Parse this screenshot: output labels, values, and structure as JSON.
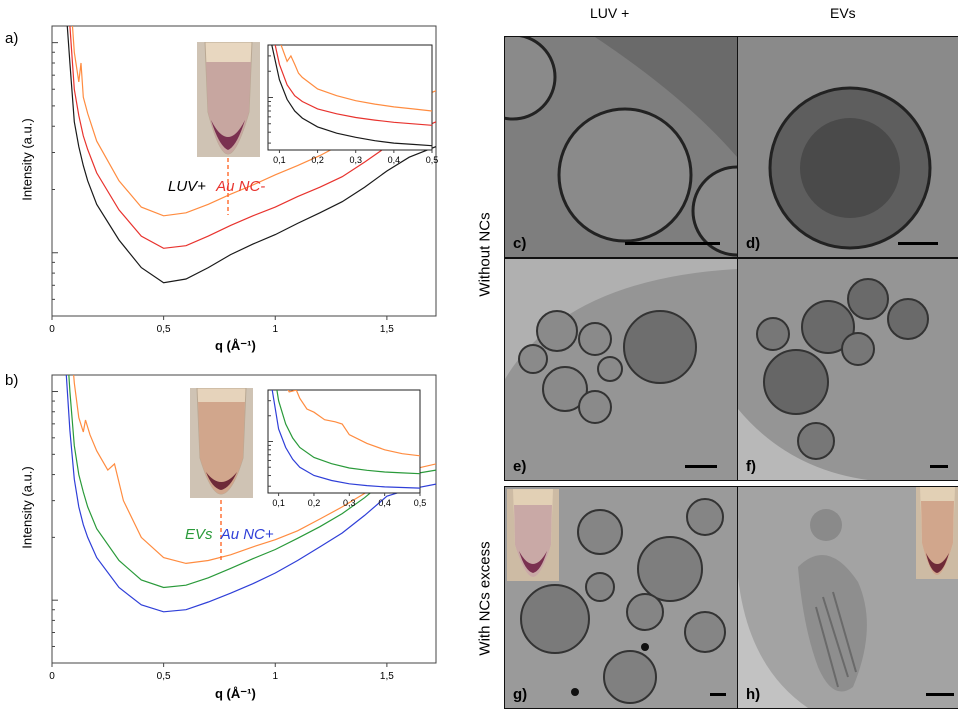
{
  "figure": {
    "panel_a_label": "a)",
    "panel_b_label": "b)",
    "col_left_title": "LUV +",
    "col_right_title": "EVs",
    "row_top_title": "Without NCs",
    "row_bottom_title": "With NCs excess",
    "micro_labels": [
      "c)",
      "d)",
      "e)",
      "f)",
      "g)",
      "h)"
    ],
    "legend_a": {
      "first": "LUV+",
      "second": "Au NC-"
    },
    "legend_b": {
      "first": "EVs",
      "second": "Au NC+"
    }
  },
  "chart_data": [
    {
      "type": "line",
      "title": "",
      "xlabel": "q (Å⁻¹)",
      "ylabel": "Intensity (a.u.)",
      "xlim": [
        0,
        1.72
      ],
      "x_ticks": [
        "0",
        "0,5",
        "1",
        "1,5"
      ],
      "log_y": true,
      "series": [
        {
          "color": "#ff8c40",
          "x": [
            0.04,
            0.06,
            0.08,
            0.1,
            0.12,
            0.13,
            0.14,
            0.16,
            0.2,
            0.3,
            0.4,
            0.5,
            0.6,
            0.7,
            0.8,
            0.9,
            1.0,
            1.1,
            1.2,
            1.3,
            1.4,
            1.5,
            1.6,
            1.72
          ],
          "y": [
            100,
            35,
            18,
            9,
            6.5,
            8,
            5.5,
            4.6,
            3.4,
            2.2,
            1.65,
            1.5,
            1.55,
            1.7,
            1.9,
            2.1,
            2.35,
            2.6,
            2.9,
            3.3,
            3.9,
            4.6,
            5.3,
            5.9
          ]
        },
        {
          "color": "#e8332e",
          "x": [
            0.04,
            0.06,
            0.08,
            0.1,
            0.12,
            0.14,
            0.16,
            0.2,
            0.3,
            0.4,
            0.5,
            0.6,
            0.7,
            0.8,
            0.9,
            1.0,
            1.1,
            1.2,
            1.3,
            1.4,
            1.5,
            1.6,
            1.72
          ],
          "y": [
            100,
            25,
            12,
            6,
            4.5,
            3.6,
            3.1,
            2.4,
            1.6,
            1.2,
            1.05,
            1.08,
            1.2,
            1.35,
            1.5,
            1.65,
            1.85,
            2.05,
            2.3,
            2.7,
            3.2,
            3.7,
            4.2
          ]
        },
        {
          "color": "#1a1a1a",
          "x": [
            0.04,
            0.06,
            0.08,
            0.1,
            0.12,
            0.14,
            0.16,
            0.2,
            0.3,
            0.4,
            0.5,
            0.6,
            0.7,
            0.8,
            0.9,
            1.0,
            1.1,
            1.2,
            1.3,
            1.4,
            1.5,
            1.6,
            1.72
          ],
          "y": [
            100,
            16,
            8,
            4.2,
            3.2,
            2.6,
            2.2,
            1.7,
            1.15,
            0.85,
            0.72,
            0.75,
            0.85,
            0.98,
            1.1,
            1.22,
            1.38,
            1.55,
            1.75,
            2.05,
            2.45,
            2.85,
            3.2
          ]
        }
      ],
      "inset": {
        "xlim": [
          0.07,
          0.5
        ],
        "x_ticks": [
          "0,1",
          "0,2",
          "0,3",
          "0,4",
          "0,5"
        ],
        "series": [
          {
            "color": "#ff8c40",
            "x": [
              0.08,
              0.1,
              0.12,
              0.13,
              0.14,
              0.15,
              0.16,
              0.2,
              0.25,
              0.3,
              0.35,
              0.4,
              0.45,
              0.5
            ],
            "y": [
              100,
              45,
              26,
              30,
              24,
              19,
              17,
              12.5,
              10.5,
              9.2,
              8.4,
              7.8,
              7.4,
              7.0
            ]
          },
          {
            "color": "#e8332e",
            "x": [
              0.08,
              0.1,
              0.12,
              0.14,
              0.16,
              0.2,
              0.25,
              0.3,
              0.35,
              0.4,
              0.45,
              0.5
            ],
            "y": [
              60,
              24,
              14,
              10.5,
              9,
              7.4,
              6.5,
              5.9,
              5.5,
              5.2,
              5.0,
              4.8
            ]
          },
          {
            "color": "#1a1a1a",
            "x": [
              0.08,
              0.1,
              0.12,
              0.14,
              0.16,
              0.2,
              0.25,
              0.3,
              0.35,
              0.4,
              0.45,
              0.5
            ],
            "y": [
              40,
              16,
              9.5,
              7,
              5.8,
              4.6,
              3.9,
              3.5,
              3.2,
              3.0,
              2.9,
              2.8
            ]
          }
        ]
      }
    },
    {
      "type": "line",
      "title": "",
      "xlabel": "q (Å⁻¹)",
      "ylabel": "Intensity (a.u.)",
      "xlim": [
        0,
        1.72
      ],
      "x_ticks": [
        "0",
        "0,5",
        "1",
        "1,5"
      ],
      "log_y": true,
      "series": [
        {
          "color": "#ff8c40",
          "x": [
            0.04,
            0.06,
            0.08,
            0.1,
            0.12,
            0.14,
            0.15,
            0.17,
            0.2,
            0.25,
            0.28,
            0.32,
            0.4,
            0.5,
            0.6,
            0.7,
            0.8,
            0.9,
            1.0,
            1.1,
            1.2,
            1.3,
            1.4,
            1.5,
            1.6,
            1.72
          ],
          "y": [
            100,
            40,
            20,
            11,
            7.5,
            6.4,
            7.3,
            6.2,
            5.2,
            4.2,
            4.5,
            3.0,
            2.0,
            1.6,
            1.5,
            1.55,
            1.65,
            1.8,
            1.95,
            2.15,
            2.45,
            2.8,
            3.25,
            3.9,
            4.2,
            4.5
          ]
        },
        {
          "color": "#2a9a3a",
          "x": [
            0.04,
            0.06,
            0.08,
            0.1,
            0.12,
            0.14,
            0.16,
            0.2,
            0.3,
            0.4,
            0.5,
            0.6,
            0.7,
            0.8,
            0.9,
            1.0,
            1.1,
            1.2,
            1.3,
            1.4,
            1.5,
            1.6,
            1.72
          ],
          "y": [
            100,
            22,
            10,
            5.5,
            4.0,
            3.3,
            2.8,
            2.2,
            1.55,
            1.25,
            1.15,
            1.18,
            1.28,
            1.42,
            1.58,
            1.75,
            1.98,
            2.25,
            2.6,
            3.1,
            3.8,
            4.0,
            4.2
          ]
        },
        {
          "color": "#2f3fd8",
          "x": [
            0.04,
            0.06,
            0.08,
            0.1,
            0.12,
            0.14,
            0.16,
            0.2,
            0.3,
            0.4,
            0.5,
            0.6,
            0.7,
            0.8,
            0.9,
            1.0,
            1.1,
            1.2,
            1.3,
            1.4,
            1.5,
            1.6,
            1.72
          ],
          "y": [
            100,
            14,
            6.5,
            3.8,
            2.8,
            2.3,
            2.0,
            1.6,
            1.15,
            0.95,
            0.88,
            0.9,
            0.98,
            1.08,
            1.2,
            1.35,
            1.55,
            1.8,
            2.1,
            2.55,
            3.15,
            3.4,
            3.6
          ]
        }
      ],
      "inset": {
        "xlim": [
          0.07,
          0.5
        ],
        "x_ticks": [
          "0,1",
          "0,2",
          "0,3",
          "0,4",
          "0,5"
        ],
        "series": [
          {
            "color": "#ff8c40",
            "x": [
              0.09,
              0.11,
              0.13,
              0.15,
              0.16,
              0.18,
              0.2,
              0.23,
              0.26,
              0.28,
              0.3,
              0.35,
              0.4,
              0.45,
              0.5
            ],
            "y": [
              100,
              55,
              38,
              40,
              32,
              24,
              22,
              18,
              17,
              16,
              12,
              9.5,
              8.0,
              7.2,
              6.8
            ]
          },
          {
            "color": "#2a9a3a",
            "x": [
              0.08,
              0.1,
              0.12,
              0.14,
              0.16,
              0.2,
              0.25,
              0.3,
              0.35,
              0.4,
              0.45,
              0.5
            ],
            "y": [
              100,
              30,
              16,
              11,
              8.5,
              6.5,
              5.5,
              4.9,
              4.6,
              4.4,
              4.3,
              4.2
            ]
          },
          {
            "color": "#2f3fd8",
            "x": [
              0.08,
              0.1,
              0.12,
              0.14,
              0.16,
              0.2,
              0.25,
              0.3,
              0.35,
              0.4,
              0.45,
              0.5
            ],
            "y": [
              45,
              14,
              8.5,
              6.2,
              5.0,
              4.0,
              3.5,
              3.2,
              3.05,
              2.95,
              2.9,
              2.85
            ]
          }
        ]
      }
    }
  ]
}
